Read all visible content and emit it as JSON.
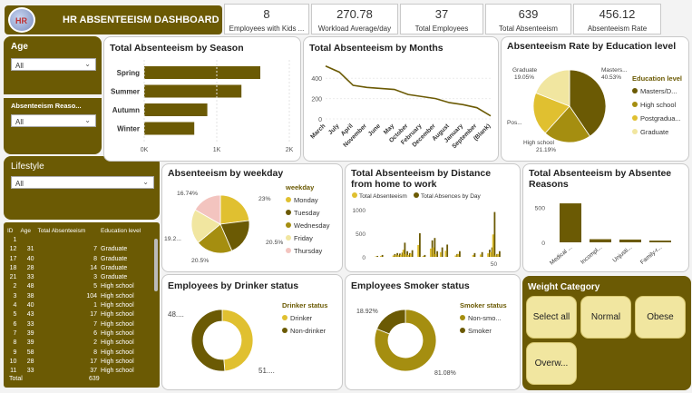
{
  "title": "HR ABSENTEEISM DASHBOARD",
  "logo_text": "HR",
  "kpis": [
    {
      "value": "8",
      "label": "Employees with Kids ..."
    },
    {
      "value": "270.78",
      "label": "Workload Average/day"
    },
    {
      "value": "37",
      "label": "Total Employees"
    },
    {
      "value": "639",
      "label": "Total Absenteeism"
    },
    {
      "value": "456.12",
      "label": "Absenteeism Rate"
    }
  ],
  "filters": {
    "age": {
      "label": "Age",
      "value": "All"
    },
    "reason": {
      "label": "Absenteeism Reaso...",
      "value": "All"
    },
    "lifestyle": {
      "label": "Lifestyle",
      "value": "All"
    }
  },
  "season_chart": {
    "title": "Total Absenteeism by Season",
    "ticks": [
      "0K",
      "1K",
      "2K"
    ]
  },
  "months_chart": {
    "title": "Total Absenteeism by Months",
    "yticks": [
      "400",
      "200",
      "0"
    ]
  },
  "education_chart": {
    "title": "Absenteeism Rate by Education level",
    "legend_title": "Education level",
    "legend": [
      "Masters/D...",
      "High school",
      "Postgradua...",
      "Graduate"
    ],
    "labels": [
      "Graduate",
      "19.05%",
      "Masters...",
      "40.53%",
      "Pos...",
      "High school",
      "21.19%"
    ]
  },
  "weekday_chart": {
    "title": "Absenteeism by weekday",
    "legend_title": "weekday",
    "legend": [
      "Monday",
      "Tuesday",
      "Wednesday",
      "Friday",
      "Thursday"
    ],
    "labels": [
      "16.74%",
      "23%",
      "19.2...",
      "20.5%",
      "20.5%"
    ]
  },
  "distance_chart": {
    "title": "Total Absenteeism by Distance from home to work",
    "legend": [
      "Total Absenteeism",
      "Total Absences by Day"
    ],
    "yticks": [
      "1000",
      "500",
      "0"
    ],
    "xticks": [
      "50"
    ]
  },
  "reasons_chart": {
    "title": "Total Absenteeism by Absentee Reasons",
    "yticks": [
      "500",
      "0"
    ],
    "categories": [
      "Medical ...",
      "Incompl...",
      "Unjusti...",
      "Family-r..."
    ]
  },
  "drinker_chart": {
    "title": "Employees by Drinker status",
    "legend_title": "Drinker status",
    "legend": [
      "Drinker",
      "Non-drinker"
    ],
    "labels": [
      "48....",
      "51...."
    ]
  },
  "smoker_chart": {
    "title": "Employees Smoker status",
    "legend_title": "Smoker status",
    "legend": [
      "Non-smo...",
      "Smoker"
    ],
    "labels": [
      "18.92%",
      "81.08%"
    ]
  },
  "weight": {
    "title": "Weight Category",
    "buttons": [
      "Select all",
      "Normal",
      "Obese",
      "Overw..."
    ]
  },
  "table": {
    "headers": [
      "ID",
      "Age",
      "Total Absenteeism",
      "Education level"
    ],
    "rows": [
      [
        "1",
        "",
        "",
        ""
      ],
      [
        "12",
        "31",
        "7",
        "Graduate"
      ],
      [
        "17",
        "40",
        "8",
        "Graduate"
      ],
      [
        "18",
        "28",
        "14",
        "Graduate"
      ],
      [
        "21",
        "33",
        "3",
        "Graduate"
      ],
      [
        "2",
        "48",
        "5",
        "High school"
      ],
      [
        "3",
        "38",
        "104",
        "High school"
      ],
      [
        "4",
        "40",
        "1",
        "High school"
      ],
      [
        "5",
        "43",
        "17",
        "High school"
      ],
      [
        "6",
        "33",
        "7",
        "High school"
      ],
      [
        "7",
        "39",
        "6",
        "High school"
      ],
      [
        "8",
        "39",
        "2",
        "High school"
      ],
      [
        "9",
        "58",
        "8",
        "High school"
      ],
      [
        "10",
        "28",
        "17",
        "High school"
      ],
      [
        "11",
        "33",
        "37",
        "High school"
      ]
    ],
    "total_label": "Total",
    "total_value": "639"
  },
  "chart_data": [
    {
      "type": "bar",
      "title": "Total Absenteeism by Season",
      "categories": [
        "Spring",
        "Summer",
        "Autumn",
        "Winter"
      ],
      "values": [
        1600,
        1340,
        870,
        690
      ],
      "xlim": [
        0,
        2000
      ]
    },
    {
      "type": "line",
      "title": "Total Absenteeism by Months",
      "categories": [
        "March",
        "July",
        "April",
        "November",
        "June",
        "May",
        "October",
        "February",
        "December",
        "August",
        "January",
        "September",
        "(Blank)"
      ],
      "values": [
        520,
        460,
        330,
        310,
        300,
        290,
        240,
        220,
        200,
        160,
        140,
        110,
        30
      ],
      "ylim": [
        0,
        500
      ]
    },
    {
      "type": "pie",
      "title": "Absenteeism Rate by Education level",
      "labels": [
        "Masters/D...",
        "High school",
        "Postgradua...",
        "Graduate"
      ],
      "values": [
        40.53,
        21.19,
        19.23,
        19.05
      ]
    },
    {
      "type": "pie",
      "title": "Absenteeism by weekday",
      "labels": [
        "Monday",
        "Tuesday",
        "Wednesday",
        "Friday",
        "Thursday"
      ],
      "values": [
        23,
        20.5,
        20.5,
        19.26,
        16.74
      ]
    },
    {
      "type": "bar",
      "title": "Total Absenteeism by Distance from home to work",
      "series": [
        {
          "name": "Total Absenteeism"
        },
        {
          "name": "Total Absences by Day"
        }
      ],
      "x": [
        3,
        5,
        10,
        11,
        12,
        13,
        14,
        15,
        16,
        17,
        20,
        22,
        25,
        26,
        27,
        29,
        31,
        35,
        36,
        42,
        45,
        48,
        49,
        50,
        51,
        52
      ],
      "values": [
        20,
        40,
        60,
        80,
        70,
        90,
        300,
        120,
        80,
        140,
        500,
        40,
        350,
        400,
        120,
        200,
        260,
        60,
        120,
        80,
        100,
        150,
        200,
        950,
        60,
        120
      ],
      "ylim": [
        0,
        1000
      ]
    },
    {
      "type": "bar",
      "title": "Total Absenteeism by Absentee Reasons",
      "categories": [
        "Medical ...",
        "Incompl...",
        "Unjusti...",
        "Family-r..."
      ],
      "values": [
        560,
        45,
        40,
        25
      ],
      "ylim": [
        0,
        600
      ]
    },
    {
      "type": "pie",
      "title": "Employees by Drinker status",
      "labels": [
        "Drinker",
        "Non-drinker"
      ],
      "values": [
        48.65,
        51.35
      ]
    },
    {
      "type": "pie",
      "title": "Employees Smoker status",
      "labels": [
        "Non-smo...",
        "Smoker"
      ],
      "values": [
        81.08,
        18.92
      ]
    }
  ],
  "colors": {
    "dark": "#6b5a04",
    "gold": "#e0c030",
    "mid": "#a08c10",
    "light": "#f1e6a0",
    "pink": "#f3c4bf"
  }
}
